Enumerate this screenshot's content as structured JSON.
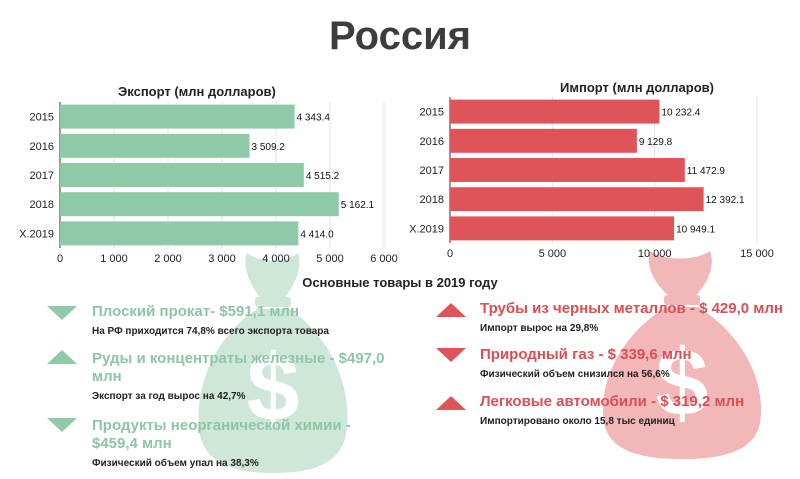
{
  "title": "Россия",
  "colors": {
    "export": "#8ec9a8",
    "import": "#de5458",
    "bag_green": "#cfe7d9",
    "bag_red": "#f2b7b9"
  },
  "chart_data": [
    {
      "type": "bar",
      "orientation": "horizontal",
      "title": "Экспорт (млн долларов)",
      "categories": [
        "2015",
        "2016",
        "2017",
        "2018",
        "X.2019"
      ],
      "values": [
        4343.4,
        3509.2,
        4515.2,
        5162.1,
        4414.0
      ],
      "value_labels": [
        "4 343.4",
        "3 509.2",
        "4 515.2",
        "5 162.1",
        "4 414.0"
      ],
      "xlim": [
        0,
        6000
      ],
      "xticks": [
        "0",
        "1 000",
        "2 000",
        "3 000",
        "4 000",
        "5 000",
        "6 000"
      ],
      "grid": true
    },
    {
      "type": "bar",
      "orientation": "horizontal",
      "title": "Импорт (млн долларов)",
      "categories": [
        "2015",
        "2016",
        "2017",
        "2018",
        "X.2019"
      ],
      "values": [
        10232.4,
        9129.8,
        11472.9,
        12392.1,
        10949.1
      ],
      "value_labels": [
        "10 232.4",
        "9 129.8",
        "11 472.9",
        "12 392.1",
        "10 949.1"
      ],
      "xlim": [
        0,
        15000
      ],
      "xticks": [
        "0",
        "5 000",
        "10 000",
        "15 000"
      ],
      "grid": true
    }
  ],
  "goods_title": "Основные товары в 2019 году",
  "export_goods": [
    {
      "name": "Плоский прокат- $591,1 млн",
      "note": "На РФ приходится 74,8% всего  экспорта товара",
      "trend": "down"
    },
    {
      "name": "Руды и концентраты железные - $497,0 млн",
      "note": "Экспорт за год вырос на 42,7%",
      "trend": "up"
    },
    {
      "name": "Продукты неорганической химии - $459,4 млн",
      "note": "Физический объем упал на 38,3%",
      "trend": "down"
    }
  ],
  "import_goods": [
    {
      "name": "Трубы из черных металлов - $ 429,0 млн",
      "note": "Импорт вырос на 29,8%",
      "trend": "up"
    },
    {
      "name": "Природный газ - $ 339,6 млн",
      "note": "Физический объем снизился на 56,6%",
      "trend": "down"
    },
    {
      "name": "Легковые автомобили - $ 319,2 млн",
      "note": "Импортировано около 15,8 тыс единиц",
      "trend": "up"
    }
  ],
  "icons": {
    "money_bag": "money-bag-icon",
    "up": "triangle-up-icon",
    "down": "triangle-down-icon"
  }
}
